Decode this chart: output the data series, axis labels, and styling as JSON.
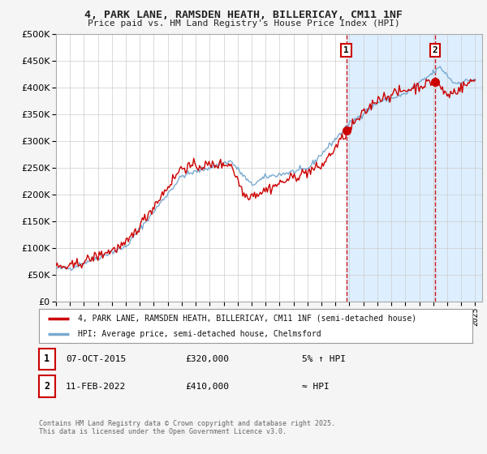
{
  "title_line1": "4, PARK LANE, RAMSDEN HEATH, BILLERICAY, CM11 1NF",
  "title_line2": "Price paid vs. HM Land Registry's House Price Index (HPI)",
  "ytick_values": [
    0,
    50000,
    100000,
    150000,
    200000,
    250000,
    300000,
    350000,
    400000,
    450000,
    500000
  ],
  "ylim": [
    0,
    500000
  ],
  "xlim_start": 1995.0,
  "xlim_end": 2025.5,
  "line1_color": "#cc0000",
  "line2_color": "#7aaad0",
  "background_color": "#f5f5f5",
  "plot_bg_color": "#ffffff",
  "span_color": "#ddeeff",
  "grid_color": "#cccccc",
  "marker1_x": 2015.77,
  "marker1_y": 320000,
  "marker2_x": 2022.12,
  "marker2_y": 410000,
  "legend_line1": "4, PARK LANE, RAMSDEN HEATH, BILLERICAY, CM11 1NF (semi-detached house)",
  "legend_line2": "HPI: Average price, semi-detached house, Chelmsford",
  "annotation1_date": "07-OCT-2015",
  "annotation1_price": "£320,000",
  "annotation1_hpi": "5% ↑ HPI",
  "annotation2_date": "11-FEB-2022",
  "annotation2_price": "£410,000",
  "annotation2_hpi": "≈ HPI",
  "footer": "Contains HM Land Registry data © Crown copyright and database right 2025.\nThis data is licensed under the Open Government Licence v3.0."
}
